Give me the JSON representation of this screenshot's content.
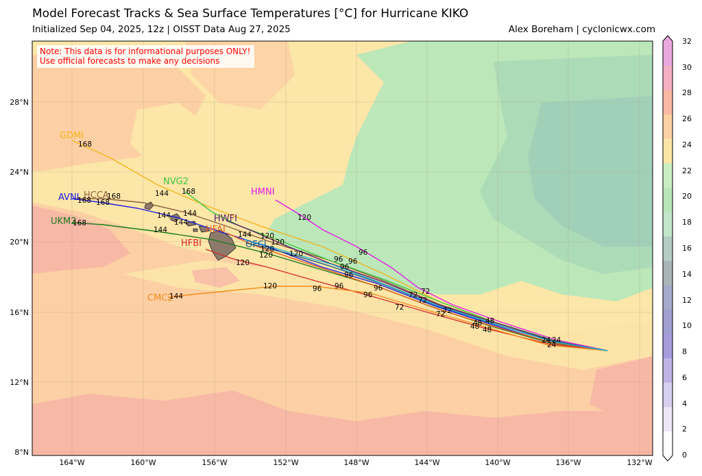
{
  "header": {
    "title": "Model Forecast Tracks & Sea Surface Temperatures [°C] for Hurricane KIKO",
    "subtitle": "Initialized Sep 04, 2025, 12z | OISST Data Aug 27, 2025",
    "credit": "Alex Boreham | cyclonicwx.com"
  },
  "note": {
    "line1": "Note: This data is for informational purposes ONLY!",
    "line2": "Use official forecasts to make any decisions"
  },
  "axes": {
    "lat_labels": [
      "28°N",
      "24°N",
      "20°N",
      "16°N",
      "12°N",
      "8°N"
    ],
    "lon_labels": [
      "164°W",
      "160°W",
      "156°W",
      "152°W",
      "148°W",
      "144°W",
      "140°W",
      "136°W",
      "132°W"
    ]
  },
  "colorbar": {
    "ticks": [
      "32",
      "30",
      "28",
      "26",
      "24",
      "22",
      "20",
      "18",
      "16",
      "14",
      "12",
      "10",
      "8",
      "6",
      "4",
      "2",
      "0"
    ],
    "colors": [
      "#ffffff",
      "#ece8f6",
      "#d6d0ee",
      "#bdb4e4",
      "#a69cdc",
      "#9fa0d0",
      "#a4abcc",
      "#a9b5b6",
      "#b4cdc4",
      "#c0e7c8",
      "#b9e6b8",
      "#c9eec2",
      "#fbe6a7",
      "#fcd1a3",
      "#fab8a4",
      "#f4b0c4",
      "#e8a8e0"
    ]
  },
  "models": [
    {
      "name": "GDMI",
      "color": "#f4b41a"
    },
    {
      "name": "HCCA",
      "color": "#8c6040"
    },
    {
      "name": "AVNI",
      "color": "#1a1ae6"
    },
    {
      "name": "NVG2",
      "color": "#3cc43c"
    },
    {
      "name": "HMNI",
      "color": "#e619e6"
    },
    {
      "name": "HWFI",
      "color": "#5a1a6a"
    },
    {
      "name": "UKM2",
      "color": "#1a7a1a"
    },
    {
      "name": "HFAI",
      "color": "#e65a1a"
    },
    {
      "name": "HFBI",
      "color": "#d62a2a"
    },
    {
      "name": "OFCI",
      "color": "#1a5a8a"
    },
    {
      "name": "CMC2",
      "color": "#f48a1a"
    }
  ],
  "hour_labels": [
    "168",
    "144",
    "120",
    "96",
    "72",
    "48",
    "24"
  ]
}
